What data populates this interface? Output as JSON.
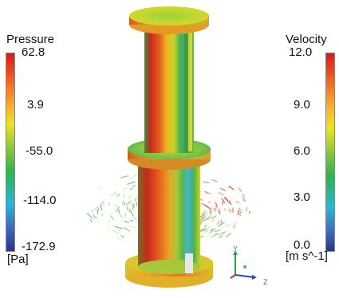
{
  "legends": {
    "pressure": {
      "title": "Pressure",
      "ticks": [
        "62.8",
        "3.9",
        "-55.0",
        "-114.0",
        "-172.9"
      ],
      "unit": "[Pa]"
    },
    "velocity": {
      "title": "Velocity",
      "ticks": [
        "12.0",
        "9.0",
        "6.0",
        "3.0",
        "0.0"
      ],
      "unit": "[m s^-1]"
    }
  },
  "axes": {
    "y": "Y",
    "z": "Z",
    "x": "X"
  },
  "colors": {
    "scale_top": "#d7191c",
    "scale_upper": "#f58220",
    "scale_mid_high": "#e8e400",
    "scale_mid": "#3cb44b",
    "scale_mid_low": "#32c8e6",
    "scale_bottom": "#2c3e9a"
  }
}
